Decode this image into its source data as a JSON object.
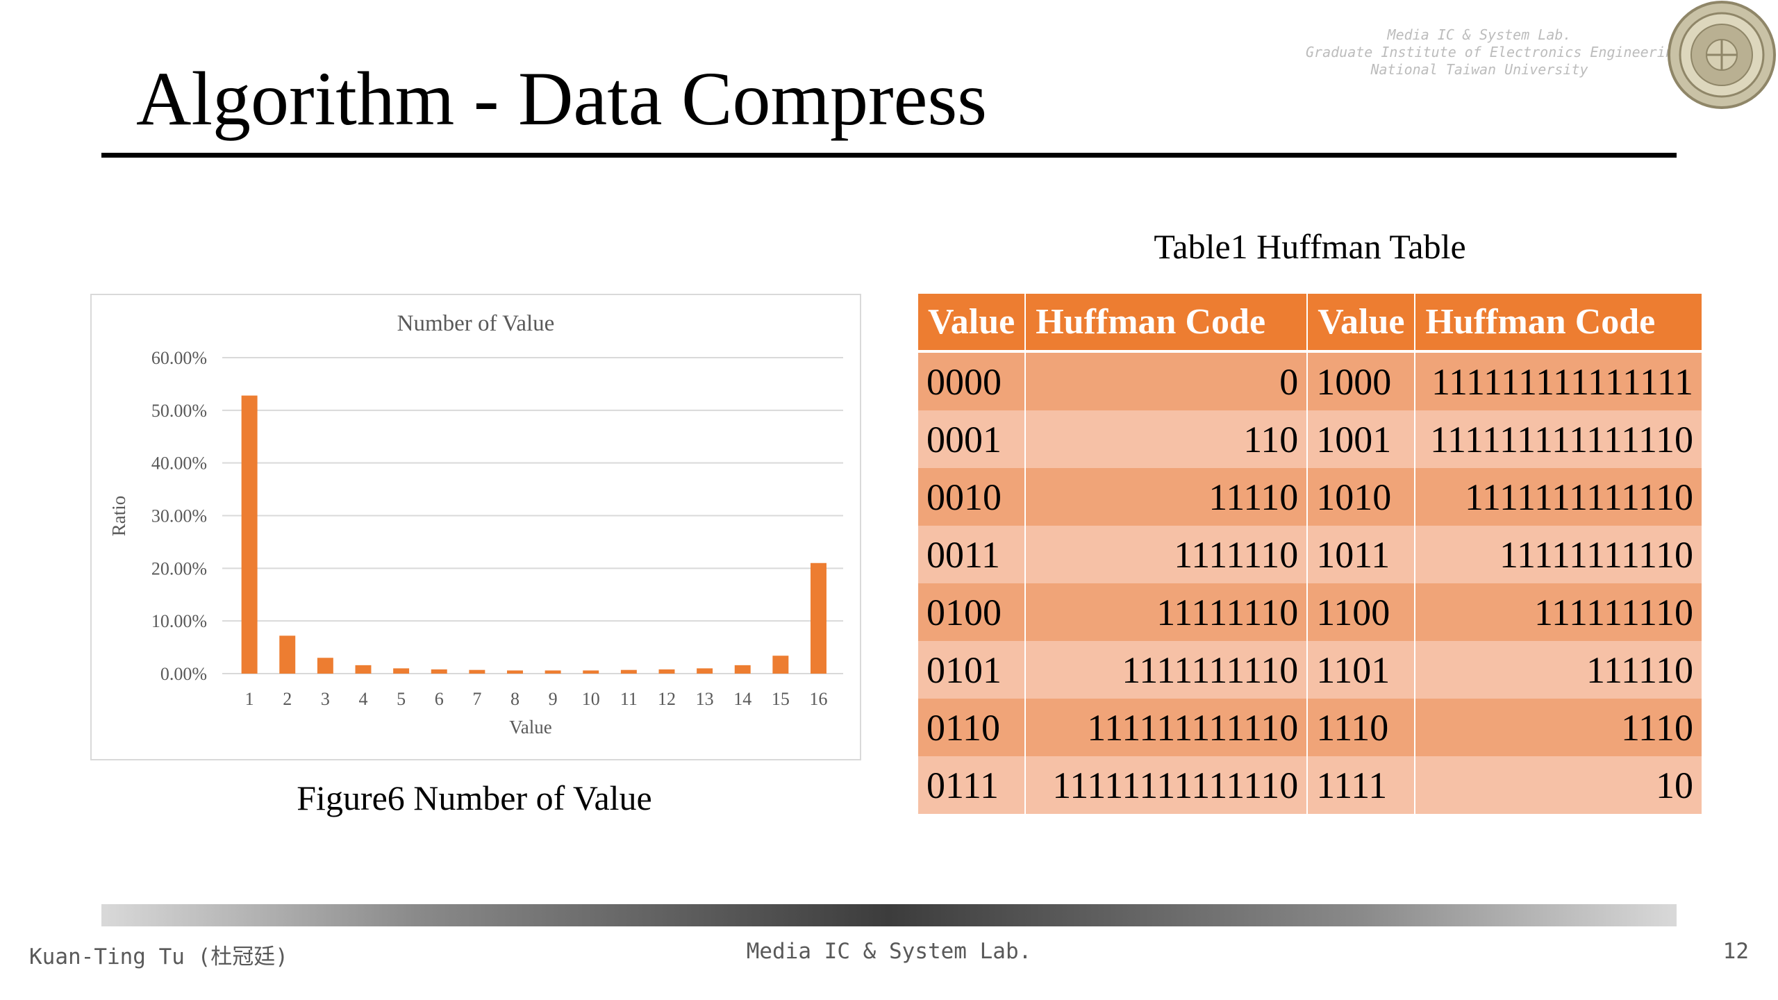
{
  "slide": {
    "title": "Algorithm - Data Compress",
    "page_number": "12"
  },
  "header_lab": {
    "line1": "Media IC & System Lab.",
    "line2": "Graduate Institute of Electronics Engineering",
    "line3": "National Taiwan University"
  },
  "figure": {
    "caption": "Figure6 Number of Value"
  },
  "chart_data": {
    "type": "bar",
    "title": "Number of Value",
    "xlabel": "Value",
    "ylabel": "Ratio",
    "categories": [
      "1",
      "2",
      "3",
      "4",
      "5",
      "6",
      "7",
      "8",
      "9",
      "10",
      "11",
      "12",
      "13",
      "14",
      "15",
      "16"
    ],
    "values": [
      52.8,
      7.2,
      3.0,
      1.6,
      1.0,
      0.8,
      0.7,
      0.6,
      0.6,
      0.6,
      0.7,
      0.8,
      1.0,
      1.6,
      3.4,
      21.0
    ],
    "ylim": [
      0,
      60
    ],
    "y_ticks": [
      "0.00%",
      "10.00%",
      "20.00%",
      "30.00%",
      "40.00%",
      "50.00%",
      "60.00%"
    ],
    "grid": true,
    "bar_color": "#ed7d31"
  },
  "table": {
    "caption": "Table1 Huffman Table",
    "headers": [
      "Value",
      "Huffman Code",
      "Value",
      "Huffman Code"
    ],
    "rows": [
      [
        "0000",
        "0",
        "1000",
        "111111111111111"
      ],
      [
        "0001",
        "110",
        "1001",
        "111111111111110"
      ],
      [
        "0010",
        "11110",
        "1010",
        "1111111111110"
      ],
      [
        "0011",
        "1111110",
        "1011",
        "11111111110"
      ],
      [
        "0100",
        "11111110",
        "1100",
        "111111110"
      ],
      [
        "0101",
        "1111111110",
        "1101",
        "111110"
      ],
      [
        "0110",
        "111111111110",
        "1110",
        "1110"
      ],
      [
        "0111",
        "11111111111110",
        "1111",
        "10"
      ]
    ],
    "header_color": "#ed7d31",
    "row_color_dark": "#f0a478",
    "row_color_light": "#f6c1a6"
  },
  "footer": {
    "author": "Kuan-Ting Tu (杜冠廷)",
    "lab": "Media IC & System Lab."
  }
}
